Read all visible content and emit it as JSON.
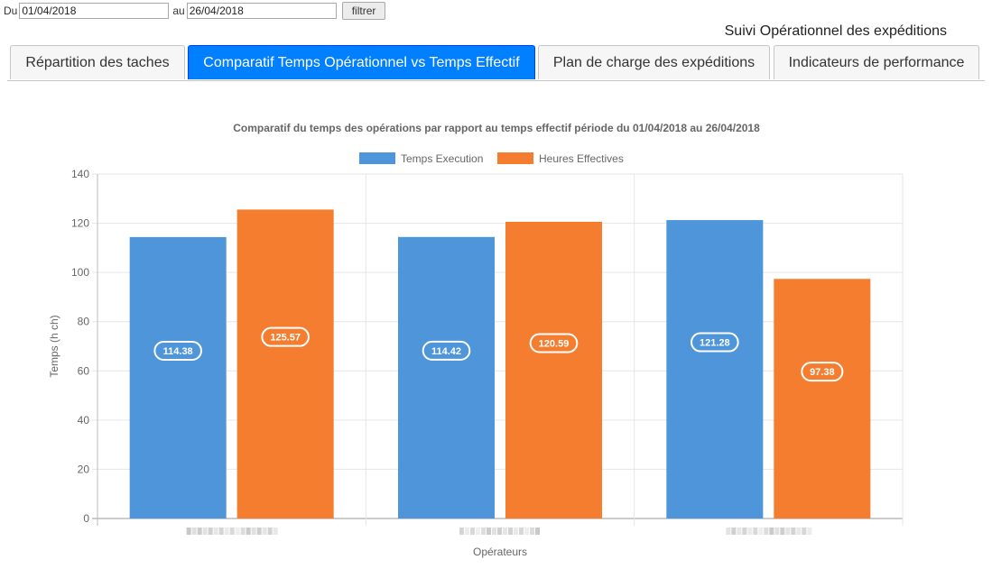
{
  "filter": {
    "from_label": "Du",
    "from_value": "01/04/2018",
    "to_label": "au",
    "to_value": "26/04/2018",
    "button_label": "filtrer"
  },
  "page_title": "Suivi Opérationnel des expéditions",
  "tabs": [
    {
      "label": "Répartition des taches",
      "active": false
    },
    {
      "label": "Comparatif Temps Opérationnel vs Temps Effectif",
      "active": true
    },
    {
      "label": "Plan de charge des expéditions",
      "active": false
    },
    {
      "label": "Indicateurs de performance",
      "active": false
    }
  ],
  "colors": {
    "accent_tab": "#007fff",
    "series_execution": "#4e95d9",
    "series_effective": "#f47d30"
  },
  "chart_data": {
    "type": "bar",
    "title": "Comparatif du temps des opérations par rapport au temps effectif période du 01/04/2018 au 26/04/2018",
    "xlabel": "Opérateurs",
    "ylabel": "Temps (h ch)",
    "ylim": [
      0,
      140
    ],
    "yticks": [
      0,
      20,
      40,
      60,
      80,
      100,
      120,
      140
    ],
    "grid": true,
    "legend_position": "top",
    "categories": [
      "",
      "",
      ""
    ],
    "categories_obscured": true,
    "series": [
      {
        "name": "Temps Execution",
        "color": "#4e95d9",
        "values": [
          114.38,
          114.42,
          121.28
        ]
      },
      {
        "name": "Heures Effectives",
        "color": "#f47d30",
        "values": [
          125.57,
          120.59,
          97.38
        ]
      }
    ]
  }
}
